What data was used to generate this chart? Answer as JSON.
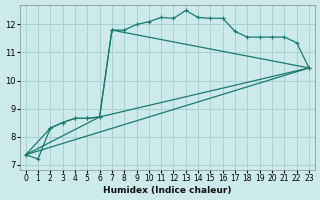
{
  "xlabel": "Humidex (Indice chaleur)",
  "bg_color": "#cce9eb",
  "grid_color": "#aad0d3",
  "line_color": "#1a7a6e",
  "xlim": [
    -0.5,
    23.5
  ],
  "ylim": [
    6.8,
    12.7
  ],
  "yticks": [
    7,
    8,
    9,
    10,
    11,
    12
  ],
  "xticks": [
    0,
    1,
    2,
    3,
    4,
    5,
    6,
    7,
    8,
    9,
    10,
    11,
    12,
    13,
    14,
    15,
    16,
    17,
    18,
    19,
    20,
    21,
    22,
    23
  ],
  "series1_x": [
    0,
    1,
    2,
    3,
    4,
    5,
    6,
    7,
    8,
    9,
    10,
    11,
    12,
    13,
    14,
    15,
    16,
    17,
    18,
    19,
    20,
    21,
    22,
    23
  ],
  "series1_y": [
    7.35,
    7.2,
    8.3,
    8.5,
    8.65,
    8.65,
    8.7,
    11.8,
    11.8,
    12.0,
    12.1,
    12.25,
    12.22,
    12.5,
    12.25,
    12.22,
    12.22,
    11.75,
    11.55,
    11.55,
    11.55,
    11.55,
    11.35,
    10.45
  ],
  "series2_x": [
    0,
    2,
    3,
    4,
    5,
    6,
    7,
    23
  ],
  "series2_y": [
    7.35,
    8.3,
    8.5,
    8.65,
    8.65,
    8.7,
    11.8,
    10.45
  ],
  "series3_x": [
    0,
    23
  ],
  "series3_y": [
    7.35,
    10.45
  ],
  "series4_x": [
    0,
    6,
    23
  ],
  "series4_y": [
    7.35,
    8.7,
    10.45
  ]
}
